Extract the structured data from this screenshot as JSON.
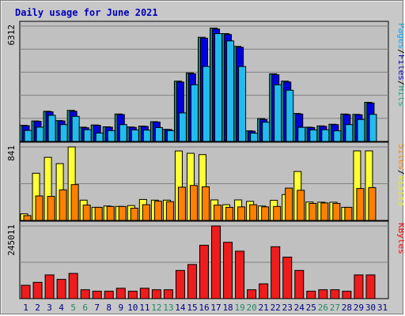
{
  "chart_data": {
    "type": "bar",
    "title": "Daily usage for June 2021",
    "categories": [
      "1",
      "2",
      "3",
      "4",
      "5",
      "6",
      "7",
      "8",
      "9",
      "10",
      "11",
      "12",
      "13",
      "14",
      "15",
      "16",
      "17",
      "18",
      "19",
      "20",
      "21",
      "22",
      "23",
      "24",
      "25",
      "26",
      "27",
      "28",
      "29",
      "30",
      "31"
    ],
    "weekend_days": [
      "5",
      "6",
      "12",
      "13",
      "19",
      "20",
      "26",
      "27"
    ],
    "panels": [
      {
        "max_label": "6312",
        "right_label": [
          "Pages",
          "/",
          "Files",
          "/",
          "Hits"
        ],
        "right_colors": [
          "#00aaff",
          "#000000",
          "#0000cc",
          "#000000",
          "#22aa88"
        ],
        "series": [
          {
            "name": "Hits",
            "color": "#22886f",
            "values": [
              880,
              1120,
              1650,
              1140,
              1700,
              780,
              900,
              800,
              1500,
              790,
              840,
              1080,
              660,
              3300,
              3750,
              5700,
              6200,
              5900,
              5200,
              580,
              1250,
              3700,
              3300,
              1530,
              780,
              850,
              940,
              1500,
              1480,
              2140,
              1
            ]
          },
          {
            "name": "Files",
            "color": "#0000dd",
            "values": [
              860,
              1100,
              1620,
              1120,
              1650,
              750,
              880,
              780,
              1470,
              770,
              820,
              1060,
              650,
              3250,
              3700,
              5650,
              6150,
              5850,
              5150,
              560,
              1200,
              3650,
              3250,
              1500,
              760,
              830,
              920,
              1470,
              1460,
              2100,
              1
            ]
          },
          {
            "name": "Pages",
            "color": "#22bbee",
            "values": [
              600,
              780,
              1430,
              920,
              1370,
              640,
              460,
              590,
              920,
              630,
              620,
              760,
              590,
              1560,
              3100,
              4100,
              5900,
              5500,
              4100,
              450,
              1050,
              3100,
              2800,
              770,
              630,
              640,
              580,
              920,
              1200,
              1480,
              1
            ]
          }
        ],
        "ymax": 6312
      },
      {
        "max_label": "841",
        "right_label": [
          "Sites",
          "/",
          "Visits"
        ],
        "right_colors": [
          "#ff8800",
          "#000000",
          "#eeee00"
        ],
        "series": [
          {
            "name": "Visits",
            "color": "#ffff33",
            "values": [
              75,
              540,
              722,
              650,
              841,
              232,
              150,
              165,
              160,
              170,
              240,
              232,
              232,
              795,
              768,
              753,
              235,
              180,
              235,
              218,
              165,
              230,
              296,
              560,
              210,
              208,
              208,
              150,
              796,
              796,
              1
            ]
          },
          {
            "name": "Sites",
            "color": "#ff8000",
            "values": [
              55,
              280,
              275,
              350,
              410,
              175,
              150,
              160,
              160,
              140,
              180,
              220,
              215,
              380,
              400,
              385,
              175,
              150,
              155,
              180,
              155,
              160,
              370,
              345,
              195,
              200,
              195,
              150,
              365,
              375,
              1
            ]
          }
        ],
        "ymax": 841
      },
      {
        "max_label": "245011",
        "right_label": [
          "KBytes"
        ],
        "right_colors": [
          "#ff0000"
        ],
        "series": [
          {
            "name": "KBytes",
            "color": "#ee1c1c",
            "values": [
              45000,
              55000,
              80000,
              65000,
              85000,
              30000,
              25000,
              25000,
              35000,
              25000,
              35000,
              30000,
              30000,
              95000,
              115000,
              180000,
              245011,
              190000,
              160000,
              30000,
              50000,
              175000,
              140000,
              95000,
              25000,
              30000,
              30000,
              25000,
              80000,
              80000,
              1
            ]
          }
        ],
        "ymax": 245011
      }
    ],
    "colors": {
      "panel_bg": "#c0c0c0",
      "frame_bg": "#c8c8c8",
      "grid": "#808080",
      "weekend": "#228866",
      "weekday": "#000080",
      "title": "#0000bb"
    }
  }
}
